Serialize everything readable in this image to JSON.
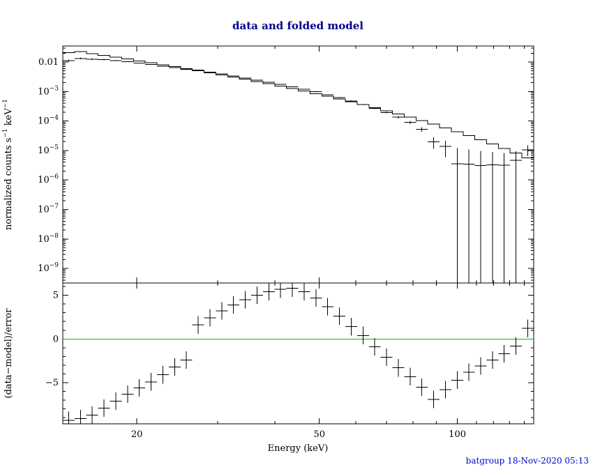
{
  "chart_data": {
    "type": "scatter",
    "title": "data and folded model",
    "xlabel": "Energy (keV)",
    "footer": "batgroup 18-Nov-2020 05:13",
    "xscale": "log",
    "xlim": [
      13.79,
      146.7
    ],
    "x_bin_half_factor": 1.03,
    "legend": "none",
    "grid": false,
    "energy_kev": [
      14.2,
      15.07,
      15.98,
      16.96,
      17.99,
      19.09,
      20.25,
      21.48,
      22.79,
      24.18,
      25.65,
      27.21,
      28.87,
      30.63,
      32.49,
      34.47,
      36.57,
      38.8,
      41.16,
      43.67,
      46.33,
      49.15,
      52.14,
      55.32,
      58.69,
      62.26,
      66.05,
      70.07,
      74.34,
      78.87,
      83.67,
      88.77,
      94.17,
      99.91,
      106.0,
      112.4,
      119.3,
      126.5,
      134.2,
      142.4
    ],
    "xticks": {
      "major": [
        {
          "v": 20,
          "label": "20"
        },
        {
          "v": 50,
          "label": "50"
        },
        {
          "v": 100,
          "label": "100"
        }
      ],
      "minor": [
        30,
        40,
        60,
        70,
        80,
        90,
        110,
        120,
        130,
        140
      ]
    },
    "top_panel": {
      "ylabel": "normalized counts s^−1 keV^−1",
      "yscale": "log",
      "ylim": [
        3.2e-10,
        0.035
      ],
      "yticks_major": [
        {
          "v": 0.01,
          "label": "0.01"
        },
        {
          "v": 0.001,
          "label": "10^−3"
        },
        {
          "v": 0.0001,
          "label": "10^−4"
        },
        {
          "v": 1e-05,
          "label": "10^−5"
        },
        {
          "v": 1e-06,
          "label": "10^−6"
        },
        {
          "v": 1e-07,
          "label": "10^−7"
        },
        {
          "v": 1e-08,
          "label": "10^−8"
        },
        {
          "v": 1e-09,
          "label": "10^−9"
        }
      ],
      "series": [
        {
          "name": "data",
          "marker": "cross",
          "color": "#000000",
          "y": [
            0.0112,
            0.0133,
            0.0126,
            0.0122,
            0.0113,
            0.0103,
            0.00924,
            0.00825,
            0.0073,
            0.00645,
            0.00565,
            0.00528,
            0.00457,
            0.00394,
            0.00338,
            0.00288,
            0.00245,
            0.00207,
            0.00175,
            0.00146,
            0.0012,
            0.000978,
            0.000782,
            0.000616,
            0.000476,
            0.000365,
            0.00027,
            0.000195,
            0.000135,
            8.91e-05,
            5.2e-05,
            1.99e-05,
            1.37e-05,
            3.5e-06,
            3.4e-06,
            3.1e-06,
            3.3e-06,
            3.2e-06,
            4.6e-06,
            1.06e-05
          ],
          "yerr": [
            0.00105,
            0.00101,
            0.000774,
            0.000589,
            0.000468,
            0.00038,
            0.000307,
            0.000246,
            0.000203,
            0.000168,
            0.000138,
            0.000112,
            9.55e-05,
            8.09e-05,
            6.84e-05,
            5.76e-05,
            5.04e-05,
            4.39e-05,
            3.96e-05,
            3.53e-05,
            3.11e-05,
            2.8e-05,
            2.48e-05,
            2.23e-05,
            1.97e-05,
            1.72e-05,
            1.5e-05,
            1.34e-05,
            1.18e-05,
            1.05e-05,
            9.3e-06,
            8.4e-06,
            7.7e-06,
            8.5e-06,
            7.5e-06,
            6.5e-06,
            5.5e-06,
            5e-06,
            4.7e-06,
            4.2e-06
          ]
        },
        {
          "name": "folded model",
          "style": "step",
          "color": "#000000",
          "y": [
            0.021,
            0.0225,
            0.0193,
            0.0168,
            0.0146,
            0.0127,
            0.011,
            0.00946,
            0.00814,
            0.00698,
            0.00598,
            0.0051,
            0.00434,
            0.00368,
            0.00311,
            0.00262,
            0.00219,
            0.00183,
            0.00152,
            0.00126,
            0.00104,
            0.000847,
            0.00069,
            0.000558,
            0.000448,
            0.000358,
            0.000283,
            0.000223,
            0.000174,
            0.000134,
            0.000103,
            7.81e-05,
            5.86e-05,
            4.34e-05,
            3.19e-05,
            2.32e-05,
            1.65e-05,
            1.17e-05,
            8.15e-06,
            5.58e-06
          ]
        }
      ]
    },
    "bottom_panel": {
      "ylabel": "(data−model)/error",
      "yscale": "linear",
      "ylim": [
        -9.7,
        6.4
      ],
      "yticks_major": [
        {
          "v": 5,
          "label": "5"
        },
        {
          "v": 0,
          "label": "0"
        },
        {
          "v": -5,
          "label": "−5"
        }
      ],
      "yticks_minor_step": 1,
      "zero_line": {
        "value": 0,
        "color": "#00c000"
      },
      "series": [
        {
          "name": "(data−model)/error",
          "marker": "cross",
          "color": "#000000",
          "yerr_const": 1.0,
          "y": [
            -9.3,
            -9.1,
            -8.7,
            -7.9,
            -7.1,
            -6.3,
            -5.6,
            -4.9,
            -4.1,
            -3.2,
            -2.4,
            1.6,
            2.4,
            3.2,
            3.9,
            4.5,
            5.0,
            5.4,
            5.7,
            5.8,
            5.4,
            4.7,
            3.7,
            2.6,
            1.4,
            0.4,
            -0.9,
            -2.1,
            -3.3,
            -4.3,
            -5.5,
            -6.9,
            -5.8,
            -4.7,
            -3.8,
            -3.1,
            -2.4,
            -1.7,
            -0.8,
            1.2
          ]
        }
      ]
    },
    "colors": {
      "background": "#ffffff",
      "frame": "#000000",
      "data": "#000000",
      "model": "#000000",
      "zero_line": "#00c000",
      "title_text": "#000090",
      "footer_text": "#0000cc"
    }
  }
}
